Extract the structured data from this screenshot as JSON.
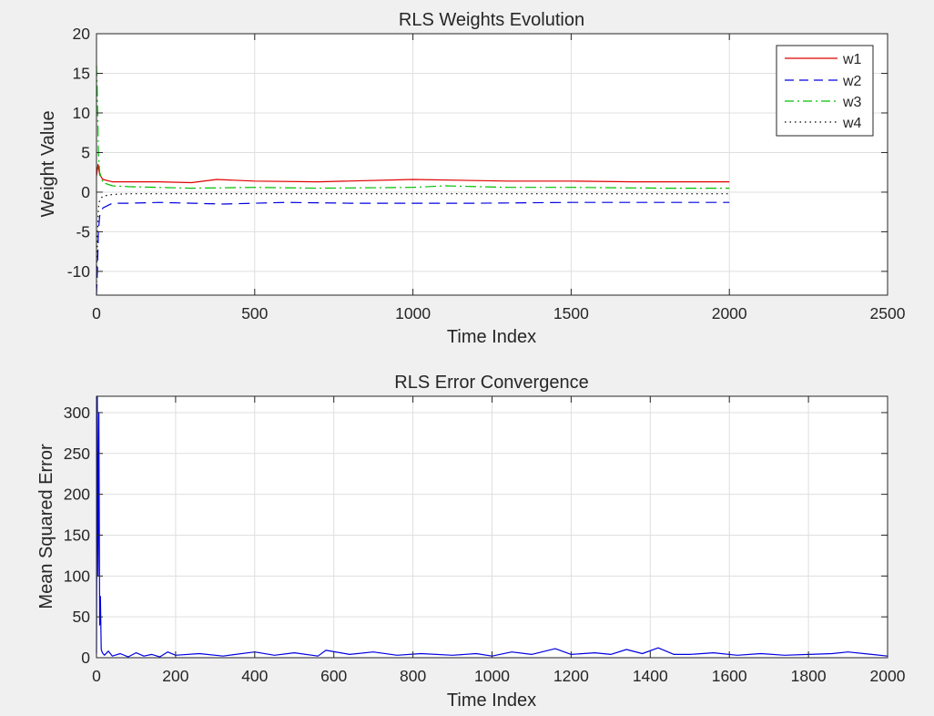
{
  "figure": {
    "background": "#f0f0f0"
  },
  "chart_data": [
    {
      "type": "line",
      "title": "RLS Weights Evolution",
      "xlabel": "Time Index",
      "ylabel": "Weight Value",
      "xlim": [
        0,
        2500
      ],
      "ylim": [
        -13,
        20
      ],
      "xticks": [
        0,
        500,
        1000,
        1500,
        2000,
        2500
      ],
      "yticks": [
        -10,
        -5,
        0,
        5,
        10,
        15,
        20
      ],
      "xtick_labels": [
        "0",
        "500",
        "1000",
        "1500",
        "2000",
        "2500"
      ],
      "ytick_labels": [
        "-10",
        "-5",
        "0",
        "5",
        "10",
        "15",
        "20"
      ],
      "grid": true,
      "legend_location": "top-right",
      "series": [
        {
          "name": "w1",
          "color": "#e00000",
          "style": "solid",
          "x": [
            0,
            5,
            10,
            20,
            50,
            100,
            200,
            300,
            380,
            500,
            700,
            1000,
            1300,
            1500,
            1700,
            2000
          ],
          "y": [
            2.0,
            3.5,
            2.2,
            1.6,
            1.3,
            1.3,
            1.3,
            1.2,
            1.6,
            1.4,
            1.3,
            1.6,
            1.4,
            1.4,
            1.3,
            1.3
          ]
        },
        {
          "name": "w2",
          "color": "#0000e0",
          "style": "dash",
          "x": [
            0,
            3,
            6,
            10,
            20,
            50,
            100,
            200,
            400,
            600,
            800,
            1000,
            1200,
            1500,
            1800,
            2000
          ],
          "y": [
            -13,
            -10,
            -5,
            -3,
            -2,
            -1.4,
            -1.4,
            -1.3,
            -1.5,
            -1.3,
            -1.4,
            -1.4,
            -1.4,
            -1.3,
            -1.3,
            -1.3
          ]
        },
        {
          "name": "w3",
          "color": "#00c000",
          "style": "dashdot",
          "x": [
            0,
            3,
            6,
            10,
            20,
            50,
            100,
            300,
            500,
            700,
            1000,
            1100,
            1300,
            1500,
            1800,
            2000
          ],
          "y": [
            16,
            12,
            5,
            2.5,
            1.2,
            0.8,
            0.7,
            0.5,
            0.6,
            0.5,
            0.6,
            0.8,
            0.6,
            0.6,
            0.5,
            0.5
          ]
        },
        {
          "name": "w4",
          "color": "#000000",
          "style": "dot",
          "x": [
            0,
            3,
            6,
            10,
            20,
            50,
            100,
            500,
            1000,
            1500,
            2000
          ],
          "y": [
            -12,
            -6,
            -2,
            -1,
            -0.5,
            -0.3,
            -0.2,
            -0.2,
            -0.2,
            -0.2,
            -0.2
          ]
        }
      ]
    },
    {
      "type": "line",
      "title": "RLS Error Convergence",
      "xlabel": "Time Index",
      "ylabel": "Mean Squared Error",
      "xlim": [
        0,
        2000
      ],
      "ylim": [
        0,
        320
      ],
      "xticks": [
        0,
        200,
        400,
        600,
        800,
        1000,
        1200,
        1400,
        1600,
        1800,
        2000
      ],
      "yticks": [
        0,
        50,
        100,
        150,
        200,
        250,
        300
      ],
      "xtick_labels": [
        "0",
        "200",
        "400",
        "600",
        "800",
        "1000",
        "1200",
        "1400",
        "1600",
        "1800",
        "2000"
      ],
      "ytick_labels": [
        "0",
        "50",
        "100",
        "150",
        "200",
        "250",
        "300"
      ],
      "grid": true,
      "series": [
        {
          "color": "#0000e0",
          "style": "solid",
          "x": [
            0,
            2,
            4,
            6,
            8,
            10,
            12,
            15,
            20,
            30,
            40,
            60,
            80,
            100,
            120,
            140,
            160,
            180,
            200,
            260,
            320,
            400,
            450,
            500,
            560,
            580,
            640,
            700,
            760,
            820,
            900,
            960,
            1000,
            1050,
            1100,
            1160,
            1200,
            1260,
            1300,
            1340,
            1380,
            1420,
            1460,
            1500,
            1560,
            1620,
            1680,
            1740,
            1800,
            1860,
            1900,
            1960,
            2000
          ],
          "y": [
            5,
            320,
            100,
            300,
            40,
            75,
            10,
            6,
            3,
            8,
            2,
            5,
            1,
            6,
            2,
            4,
            1,
            7,
            3,
            5,
            2,
            7,
            3,
            6,
            2,
            9,
            4,
            7,
            3,
            5,
            3,
            5,
            2,
            7,
            4,
            11,
            4,
            6,
            4,
            10,
            5,
            12,
            4,
            4,
            6,
            3,
            5,
            3,
            4,
            5,
            7,
            4,
            2
          ]
        }
      ]
    }
  ]
}
